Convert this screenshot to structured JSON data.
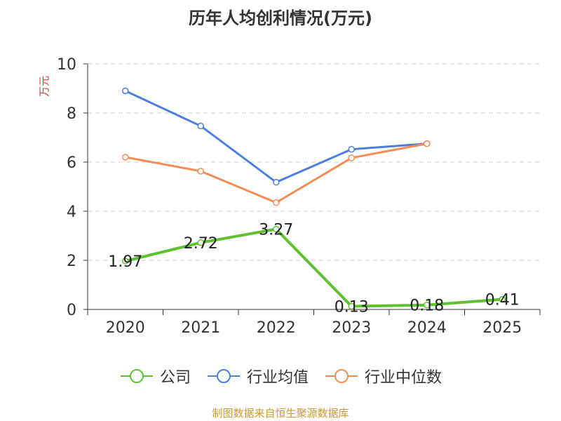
{
  "chart_data": {
    "type": "line",
    "title": "历年人均创利情况(万元)",
    "ylabel": "万元",
    "xlabel": "",
    "categories": [
      "2020",
      "2021",
      "2022",
      "2023",
      "2024",
      "2025"
    ],
    "ylim": [
      0,
      10
    ],
    "yticks": [
      "0",
      "2",
      "4",
      "6",
      "8",
      "10"
    ],
    "grid": true,
    "legend_position": "bottom",
    "series": [
      {
        "name": "公司",
        "color": "#5fc131",
        "values": [
          1.97,
          2.72,
          3.27,
          0.13,
          0.18,
          0.41
        ],
        "labels": [
          "1.97",
          "2.72",
          "3.27",
          "0.13",
          "0.18",
          "0.41"
        ],
        "show_labels": true
      },
      {
        "name": "行业均值",
        "color": "#4c7fdb",
        "values": [
          8.9,
          7.47,
          5.18,
          6.52,
          6.75,
          null
        ],
        "show_labels": false
      },
      {
        "name": "行业中位数",
        "color": "#f48c55",
        "values": [
          6.2,
          5.63,
          4.35,
          6.17,
          6.75,
          null
        ],
        "show_labels": false
      }
    ]
  },
  "source": "制图数据来自恒生聚源数据库"
}
